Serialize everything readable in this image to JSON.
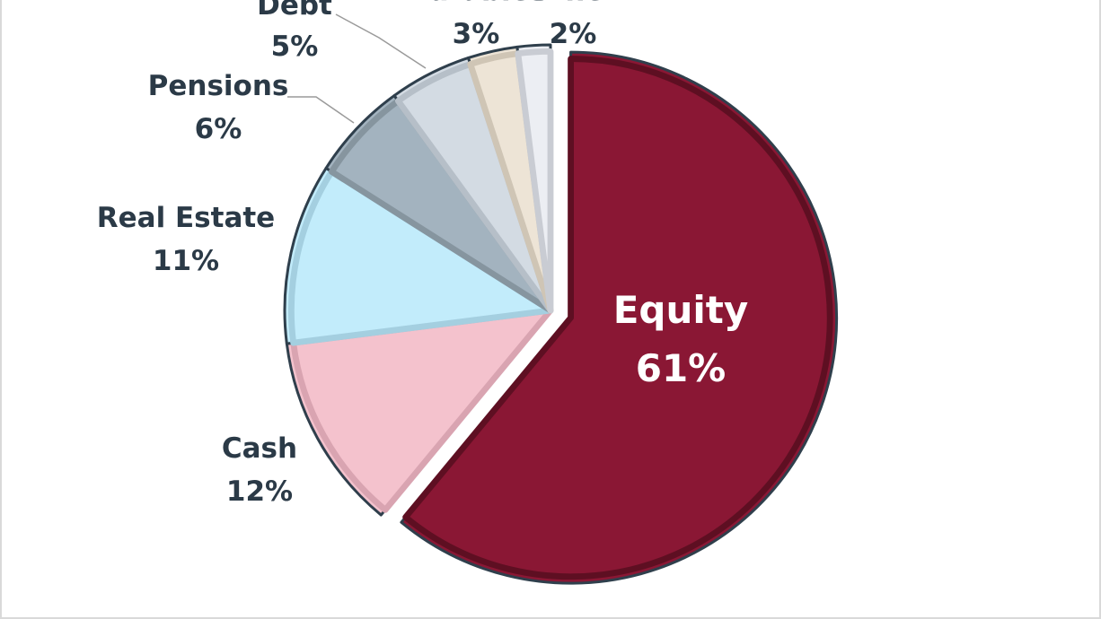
{
  "chart_data": {
    "type": "pie",
    "start_angle_deg": 0,
    "direction": "clockwise",
    "exploded": [
      "Equity"
    ],
    "slices": [
      {
        "name": "Equity",
        "label": "Equity",
        "value": 61,
        "value_label": "61%",
        "color": "#8a1734",
        "edge": "#5e0f22",
        "label_inside": true
      },
      {
        "name": "Cash",
        "label": "Cash",
        "value": 12,
        "value_label": "12%",
        "color": "#f4c2cd",
        "edge": "#d9a4b1"
      },
      {
        "name": "Real Estate",
        "label": "Real Estate",
        "value": 11,
        "value_label": "11%",
        "color": "#c2ecfb",
        "edge": "#a4cfe0"
      },
      {
        "name": "Pensions",
        "label": "Pensions",
        "value": 6,
        "value_label": "6%",
        "color": "#a3b3bf",
        "edge": "#86959f"
      },
      {
        "name": "Debt",
        "label": "Debt",
        "value": 5,
        "value_label": "5%",
        "color": "#d3dbe3",
        "edge": "#b6bfc8"
      },
      {
        "name": "Durables",
        "label": "Durables",
        "value": 3,
        "value_label": "3%",
        "color": "#ede4d6",
        "edge": "#cfc5b5"
      },
      {
        "name": "Other",
        "label": "Other",
        "value": 2,
        "value_label": "2%",
        "color": "#eceef3",
        "edge": "#c9ccd3"
      }
    ],
    "outline_color": "#2f3f4c",
    "label_color": "#2b3a47",
    "leader_line_color": "#9a9a9a"
  }
}
